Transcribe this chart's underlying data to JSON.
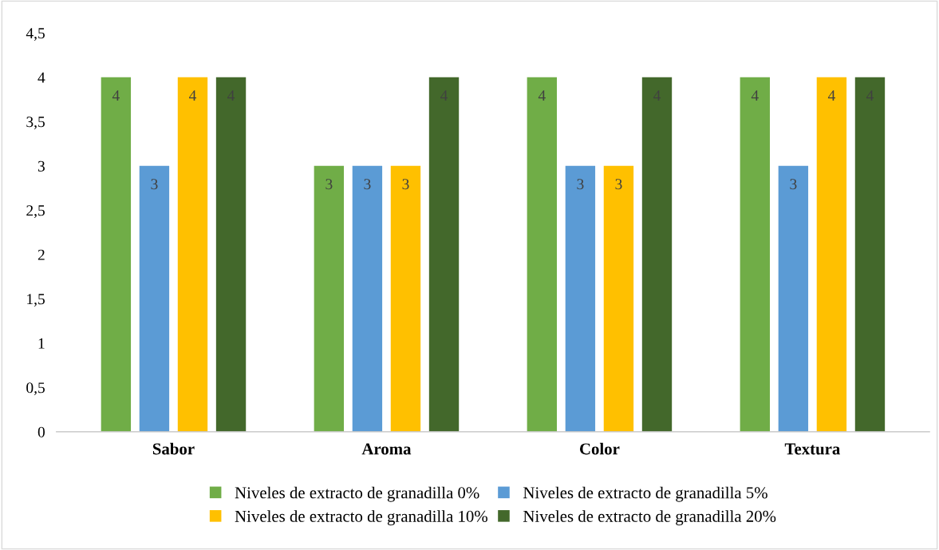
{
  "chart_data": {
    "type": "bar",
    "categories": [
      "Sabor",
      "Aroma",
      "Color",
      "Textura"
    ],
    "series": [
      {
        "name": "Niveles de extracto de granadilla 0%",
        "color": "#70ad47",
        "values": [
          4,
          3,
          4,
          4
        ]
      },
      {
        "name": "Niveles de extracto de granadilla 5%",
        "color": "#5b9bd5",
        "values": [
          3,
          3,
          3,
          3
        ]
      },
      {
        "name": "Niveles de extracto de granadilla 10%",
        "color": "#ffc000",
        "values": [
          4,
          3,
          3,
          4
        ]
      },
      {
        "name": "Niveles de extracto de granadilla 20%",
        "color": "#43682b",
        "values": [
          4,
          4,
          4,
          4
        ]
      }
    ],
    "ylim": [
      0,
      4.5
    ],
    "yticks": [
      0,
      {
        "value": 0.5,
        "label": "0,5"
      },
      1,
      {
        "value": 1.5,
        "label": "1,5"
      },
      2,
      {
        "value": 2.5,
        "label": "2,5"
      },
      3,
      {
        "value": 3.5,
        "label": "3,5"
      },
      4,
      {
        "value": 4.5,
        "label": "4,5"
      }
    ],
    "grid": false,
    "legend": "bottom",
    "data_labels": true
  }
}
